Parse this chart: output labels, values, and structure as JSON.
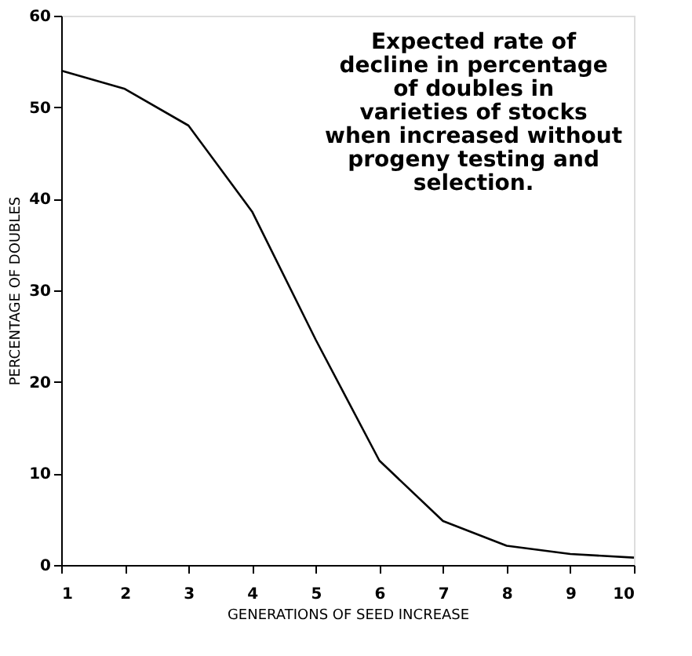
{
  "chart_data": {
    "type": "line",
    "x": [
      1,
      2,
      3,
      4,
      5,
      6,
      7,
      8,
      9,
      10
    ],
    "values": [
      54,
      52,
      48,
      38.6,
      24.6,
      11.4,
      4.8,
      2.1,
      1.2,
      0.8
    ],
    "color": "#000000",
    "xlabel": "GENERATIONS OF SEED INCREASE",
    "ylabel": "PERCENTAGE OF DOUBLES",
    "xlim": [
      1,
      10
    ],
    "xticks": [
      1,
      2,
      3,
      4,
      5,
      6,
      7,
      8,
      9,
      10
    ],
    "ylim": [
      0,
      60
    ],
    "yticks": [
      0,
      10,
      20,
      30,
      40,
      50,
      60
    ],
    "grid": false,
    "marker": "none",
    "line_style": "solid",
    "annotations": [
      "Expected rate of decline in percentage of doubles in varieties of stocks when increased without progeny testing and selection."
    ]
  }
}
